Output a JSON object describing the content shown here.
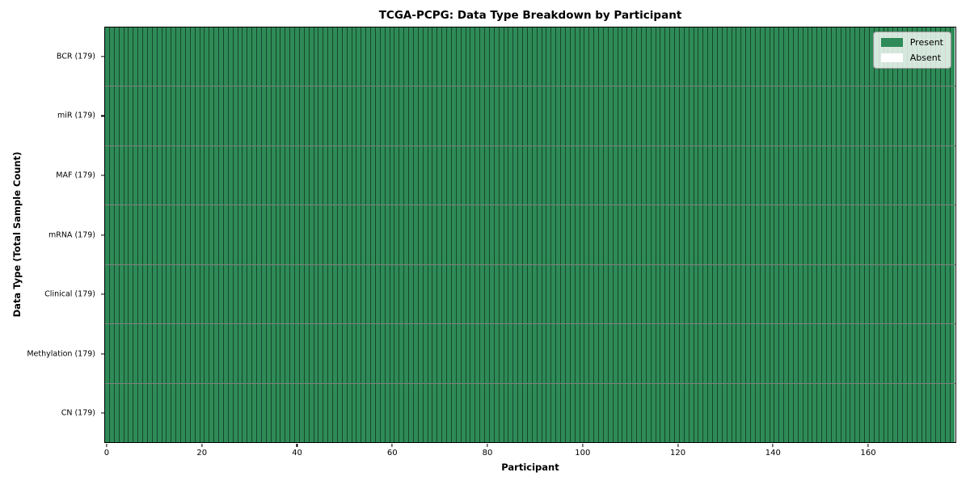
{
  "chart_data": {
    "type": "heatmap",
    "title": "TCGA-PCPG: Data Type Breakdown by Participant",
    "xlabel": "Participant",
    "ylabel": "Data Type (Total Sample Count)",
    "n_participants": 179,
    "x_ticks": [
      0,
      20,
      40,
      60,
      80,
      100,
      120,
      140,
      160
    ],
    "x_range": [
      0,
      179
    ],
    "rows": [
      {
        "label": "BCR (179)",
        "data_type": "BCR",
        "total_samples": 179,
        "present_count": 179,
        "absent_count": 0
      },
      {
        "label": "miR (179)",
        "data_type": "miR",
        "total_samples": 179,
        "present_count": 179,
        "absent_count": 0
      },
      {
        "label": "MAF (179)",
        "data_type": "MAF",
        "total_samples": 179,
        "present_count": 179,
        "absent_count": 0
      },
      {
        "label": "mRNA (179)",
        "data_type": "mRNA",
        "total_samples": 179,
        "present_count": 179,
        "absent_count": 0
      },
      {
        "label": "Clinical (179)",
        "data_type": "Clinical",
        "total_samples": 179,
        "present_count": 179,
        "absent_count": 0
      },
      {
        "label": "Methylation (179)",
        "data_type": "Methylation",
        "total_samples": 179,
        "present_count": 179,
        "absent_count": 0
      },
      {
        "label": "CN (179)",
        "data_type": "CN",
        "total_samples": 179,
        "present_count": 179,
        "absent_count": 0
      }
    ],
    "cell_values_note": "every participant column is Present (green) for all 7 data-type rows",
    "legend_items": [
      {
        "label": "Present",
        "color": "#2e8b57"
      },
      {
        "label": "Absent",
        "color": "#ffffff"
      }
    ],
    "legend_position": "upper right",
    "colors": {
      "present": "#2e8b57",
      "absent": "#ffffff",
      "grid_line": "rgba(0,0,0,0.5)",
      "spine": "#000000"
    },
    "grid": true
  }
}
